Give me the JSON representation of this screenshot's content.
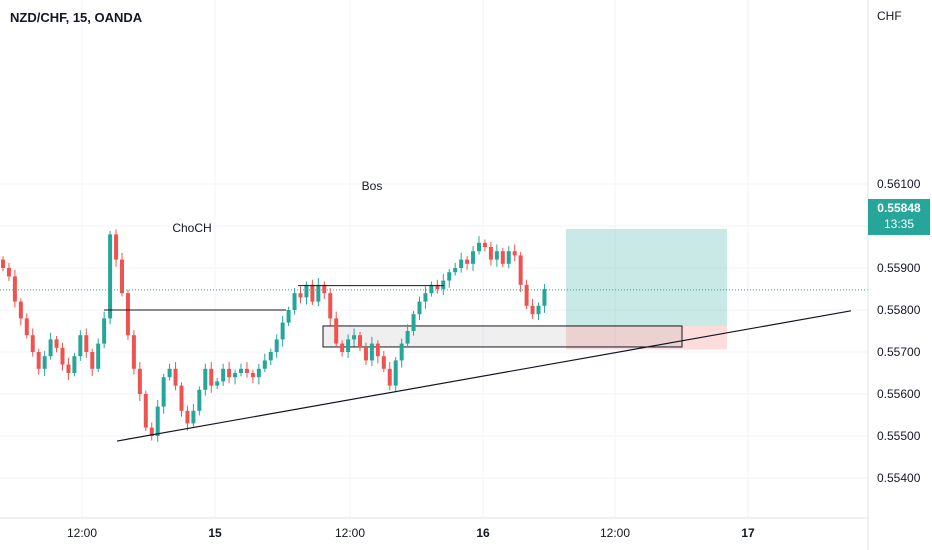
{
  "header": {
    "title": "NZD/CHF, 15, OANDA"
  },
  "currency_label": "CHF",
  "last_price": {
    "value": "0.55848",
    "countdown": "13:35"
  },
  "colors": {
    "up": "#26a69a",
    "down": "#ef5350",
    "grid": "#f0f3fa",
    "text": "#131722"
  },
  "chart_data": {
    "type": "candlestick",
    "symbol": "NZD/CHF",
    "interval": "15",
    "exchange": "OANDA",
    "y_ticks": [
      "0.56100",
      "0.56000",
      "0.55900",
      "0.55800",
      "0.55700",
      "0.55600",
      "0.55500",
      "0.55400"
    ],
    "ylim": [
      0.5535,
      0.5615
    ],
    "x_ticks": [
      "12:00",
      "15",
      "12:00",
      "16",
      "12:00",
      "17"
    ],
    "annotations": [
      {
        "label": "ChoCH",
        "level": 0.558
      },
      {
        "label": "Bos",
        "level": 0.55858
      }
    ],
    "position": {
      "entry": 0.55762,
      "target": 0.55993,
      "stop": 0.55706
    },
    "zone": {
      "top": 0.55762,
      "bottom": 0.55712
    },
    "trendline": [
      {
        "y": 0.55488
      },
      {
        "y": 0.55798
      }
    ],
    "series": [
      {
        "name": "close",
        "values": [
          0.559,
          0.5588,
          0.5582,
          0.5578,
          0.5574,
          0.557,
          0.5566,
          0.5569,
          0.5573,
          0.5571,
          0.5567,
          0.5565,
          0.5569,
          0.5574,
          0.557,
          0.5566,
          0.5572,
          0.5578,
          0.5598,
          0.5592,
          0.5584,
          0.5574,
          0.5566,
          0.556,
          0.5552,
          0.555,
          0.5557,
          0.5564,
          0.5566,
          0.5562,
          0.5556,
          0.5553,
          0.5556,
          0.5561,
          0.5566,
          0.5562,
          0.5563,
          0.5566,
          0.5564,
          0.5565,
          0.5566,
          0.5565,
          0.5564,
          0.5566,
          0.5568,
          0.557,
          0.5573,
          0.5577,
          0.558,
          0.5584,
          0.5583,
          0.5586,
          0.5582,
          0.5586,
          0.5584,
          0.5578,
          0.5572,
          0.557,
          0.5573,
          0.5574,
          0.5571,
          0.5568,
          0.5572,
          0.5569,
          0.5566,
          0.5562,
          0.5568,
          0.5572,
          0.5575,
          0.5579,
          0.5582,
          0.5584,
          0.5586,
          0.5585,
          0.5587,
          0.5589,
          0.559,
          0.5592,
          0.5591,
          0.5594,
          0.5596,
          0.5595,
          0.5592,
          0.5594,
          0.5591,
          0.5594,
          0.5593,
          0.5586,
          0.5581,
          0.5579,
          0.5581,
          0.5585
        ]
      }
    ]
  }
}
